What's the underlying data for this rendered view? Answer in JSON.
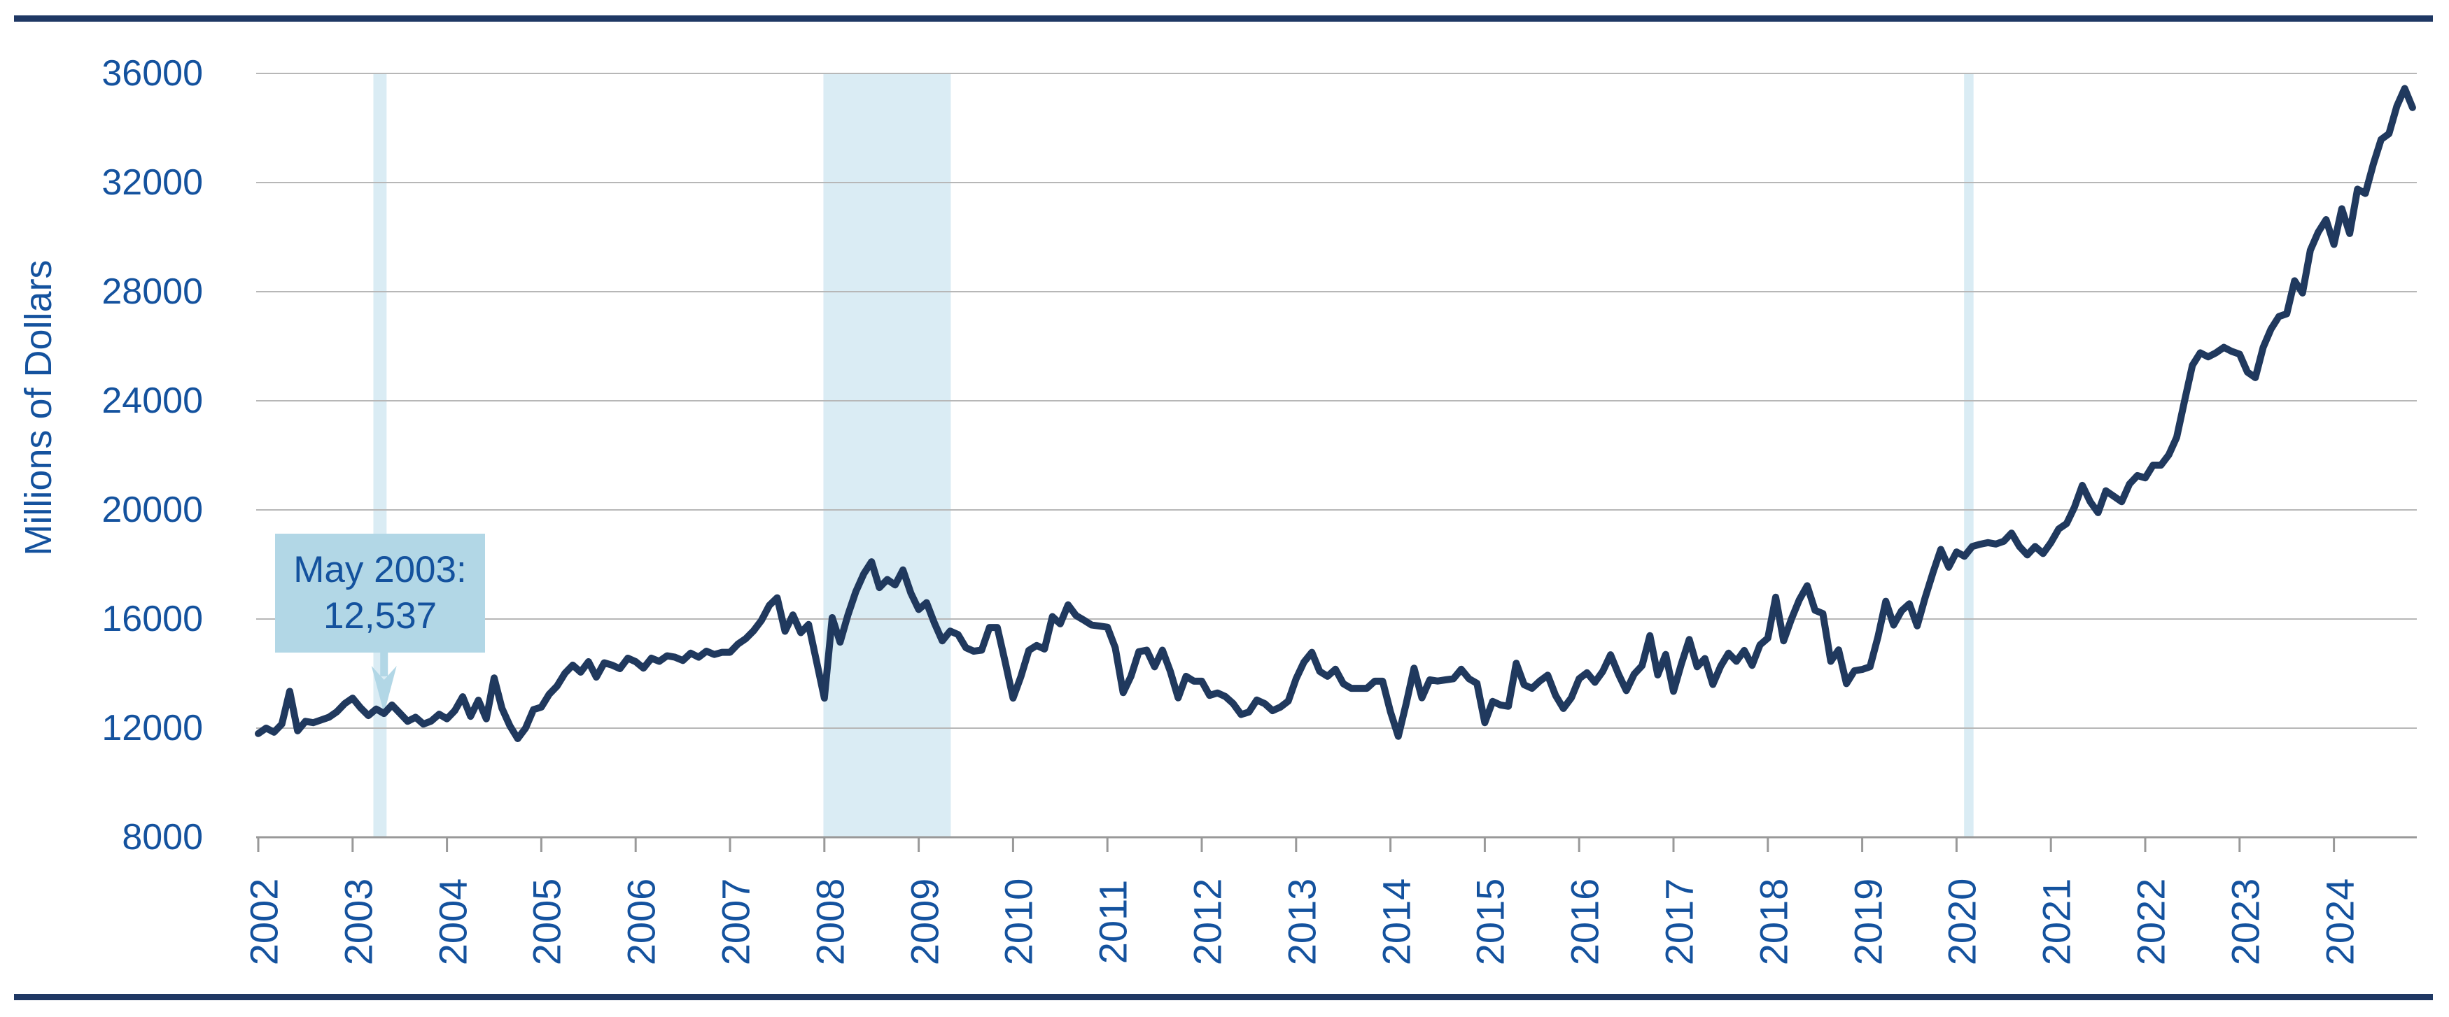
{
  "colors": {
    "border_navy": "#1f3864",
    "label_blue": "#14529e",
    "line_navy": "#20395e",
    "grid_gray": "#b7b7b7",
    "axis_gray": "#999999",
    "band_blue": "#daecf4",
    "callout_fill": "#b2d7e6",
    "annotation_text": "#14529e",
    "background": "#ffffff"
  },
  "chart_data": {
    "type": "line",
    "title": "",
    "xlabel": "",
    "ylabel": "Millions of Dollars",
    "ylim": [
      8000,
      36000
    ],
    "yticks": [
      36000,
      32000,
      28000,
      24000,
      20000,
      16000,
      12000,
      8000
    ],
    "xticks": [
      2002,
      2003,
      2004,
      2005,
      2006,
      2007,
      2008,
      2009,
      2010,
      2011,
      2012,
      2013,
      2014,
      2015,
      2016,
      2017,
      2018,
      2019,
      2020,
      2021,
      2022,
      2023,
      2024
    ],
    "grid": "horizontal",
    "legend_position": "none",
    "frequency": "monthly",
    "x_start_year": 2002,
    "x_start_month": 1,
    "series": [
      {
        "name": "Millions of Dollars",
        "values": [
          11800,
          12000,
          11850,
          12150,
          13350,
          11900,
          12250,
          12200,
          12300,
          12400,
          12600,
          12900,
          13100,
          12750,
          12460,
          12700,
          12537,
          12850,
          12550,
          12250,
          12400,
          12150,
          12260,
          12510,
          12340,
          12640,
          13150,
          12430,
          13025,
          12340,
          13840,
          12725,
          12085,
          11615,
          12000,
          12680,
          12770,
          13240,
          13540,
          14010,
          14310,
          14050,
          14435,
          13870,
          14395,
          14310,
          14180,
          14565,
          14435,
          14200,
          14565,
          14450,
          14650,
          14600,
          14480,
          14750,
          14600,
          14820,
          14700,
          14780,
          14780,
          15080,
          15280,
          15570,
          15950,
          16500,
          16780,
          15550,
          16150,
          15500,
          15800,
          14450,
          13100,
          16050,
          15150,
          16150,
          17000,
          17650,
          18100,
          17150,
          17450,
          17250,
          17800,
          16950,
          16350,
          16600,
          15850,
          15200,
          15560,
          15430,
          14950,
          14820,
          14860,
          15690,
          15690,
          14420,
          13100,
          13890,
          14850,
          15030,
          14900,
          16090,
          15820,
          16520,
          16130,
          15960,
          15780,
          15740,
          15700,
          14950,
          13300,
          13900,
          14800,
          14860,
          14250,
          14860,
          14080,
          13110,
          13900,
          13720,
          13720,
          13200,
          13290,
          13160,
          12900,
          12500,
          12590,
          13030,
          12900,
          12640,
          12770,
          12990,
          13810,
          14420,
          14780,
          14080,
          13900,
          14160,
          13630,
          13460,
          13460,
          13460,
          13720,
          13720,
          12600,
          11700,
          12900,
          14200,
          13110,
          13770,
          13725,
          13770,
          13810,
          14160,
          13810,
          13640,
          12200,
          12980,
          12850,
          12800,
          14380,
          13590,
          13460,
          13725,
          13940,
          13200,
          12720,
          13110,
          13810,
          14030,
          13680,
          14080,
          14690,
          13980,
          13375,
          13980,
          14290,
          15390,
          13950,
          14700,
          13350,
          14350,
          15250,
          14250,
          14550,
          13600,
          14270,
          14750,
          14450,
          14850,
          14300,
          15050,
          15300,
          16800,
          15200,
          16000,
          16700,
          17220,
          16320,
          16200,
          14450,
          14870,
          13630,
          14100,
          14150,
          14250,
          15340,
          16650,
          15780,
          16300,
          16560,
          15750,
          16780,
          17700,
          18550,
          17900,
          18460,
          18300,
          18660,
          18740,
          18800,
          18750,
          18850,
          19150,
          18660,
          18350,
          18660,
          18400,
          18800,
          19300,
          19500,
          20100,
          20900,
          20300,
          19900,
          20700,
          20500,
          20300,
          20950,
          21260,
          21175,
          21640,
          21640,
          22020,
          22660,
          24000,
          25300,
          25760,
          25610,
          25760,
          25960,
          25810,
          25710,
          25050,
          24850,
          25960,
          26630,
          27090,
          27190,
          28400,
          27950,
          29520,
          30180,
          30640,
          29730,
          31040,
          30130,
          31760,
          31600,
          32670,
          33580,
          33790,
          34800,
          35450,
          34750
        ]
      }
    ],
    "recession_bands": [
      {
        "start": 2003.22,
        "end": 2003.36
      },
      {
        "start": 2007.99,
        "end": 2009.34
      },
      {
        "start": 2020.08,
        "end": 2020.18
      }
    ],
    "annotation": {
      "line1": "May 2003:",
      "line2": "12,537",
      "target_year": 2003,
      "target_month": 5,
      "target_value": 12537
    }
  }
}
